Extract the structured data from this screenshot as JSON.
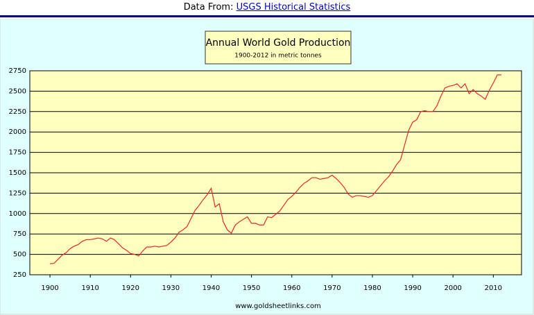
{
  "header": {
    "label": "Data From:",
    "link": "USGS Historical Statistics"
  },
  "chart_data": {
    "type": "line",
    "title": "Annual World Gold Production",
    "subtitle": "1900-2012 in metric tonnes",
    "source": "www.goldsheetlinks.com",
    "color": "#e8262a",
    "grid": true,
    "x": [
      1900,
      1901,
      1902,
      1903,
      1904,
      1905,
      1906,
      1907,
      1908,
      1909,
      1910,
      1911,
      1912,
      1913,
      1914,
      1915,
      1916,
      1917,
      1918,
      1919,
      1920,
      1921,
      1922,
      1923,
      1924,
      1925,
      1926,
      1927,
      1928,
      1929,
      1930,
      1931,
      1932,
      1933,
      1934,
      1935,
      1936,
      1937,
      1938,
      1939,
      1940,
      1941,
      1942,
      1943,
      1944,
      1945,
      1946,
      1947,
      1948,
      1949,
      1950,
      1951,
      1952,
      1953,
      1954,
      1955,
      1956,
      1957,
      1958,
      1959,
      1960,
      1961,
      1962,
      1963,
      1964,
      1965,
      1966,
      1967,
      1968,
      1969,
      1970,
      1971,
      1972,
      1973,
      1974,
      1975,
      1976,
      1977,
      1978,
      1979,
      1980,
      1981,
      1982,
      1983,
      1984,
      1985,
      1986,
      1987,
      1988,
      1989,
      1990,
      1991,
      1992,
      1993,
      1994,
      1995,
      1996,
      1997,
      1998,
      1999,
      2000,
      2001,
      2002,
      2003,
      2004,
      2005,
      2006,
      2007,
      2008,
      2009,
      2010,
      2011,
      2012
    ],
    "values": [
      385,
      390,
      440,
      490,
      520,
      570,
      600,
      620,
      660,
      680,
      680,
      690,
      700,
      690,
      660,
      700,
      680,
      630,
      580,
      550,
      510,
      500,
      480,
      540,
      590,
      590,
      600,
      590,
      600,
      610,
      650,
      700,
      770,
      800,
      840,
      940,
      1040,
      1100,
      1170,
      1230,
      1310,
      1080,
      1120,
      900,
      800,
      760,
      860,
      900,
      930,
      960,
      880,
      880,
      860,
      860,
      960,
      950,
      990,
      1030,
      1100,
      1170,
      1210,
      1260,
      1320,
      1370,
      1400,
      1440,
      1440,
      1420,
      1430,
      1440,
      1470,
      1430,
      1380,
      1320,
      1240,
      1200,
      1220,
      1220,
      1210,
      1200,
      1220,
      1280,
      1340,
      1400,
      1450,
      1520,
      1600,
      1660,
      1840,
      2020,
      2120,
      2150,
      2250,
      2260,
      2250,
      2250,
      2320,
      2440,
      2540,
      2560,
      2570,
      2590,
      2540,
      2590,
      2470,
      2520,
      2470,
      2440,
      2400,
      2510,
      2600,
      2700,
      2700
    ],
    "xlim": [
      1895,
      2017
    ],
    "ylim": [
      250,
      2750
    ],
    "xticks": [
      1900,
      1910,
      1920,
      1930,
      1940,
      1950,
      1960,
      1970,
      1980,
      1990,
      2000,
      2010
    ],
    "yticks": [
      250,
      500,
      750,
      1000,
      1250,
      1500,
      1750,
      2000,
      2250,
      2500,
      2750
    ]
  }
}
